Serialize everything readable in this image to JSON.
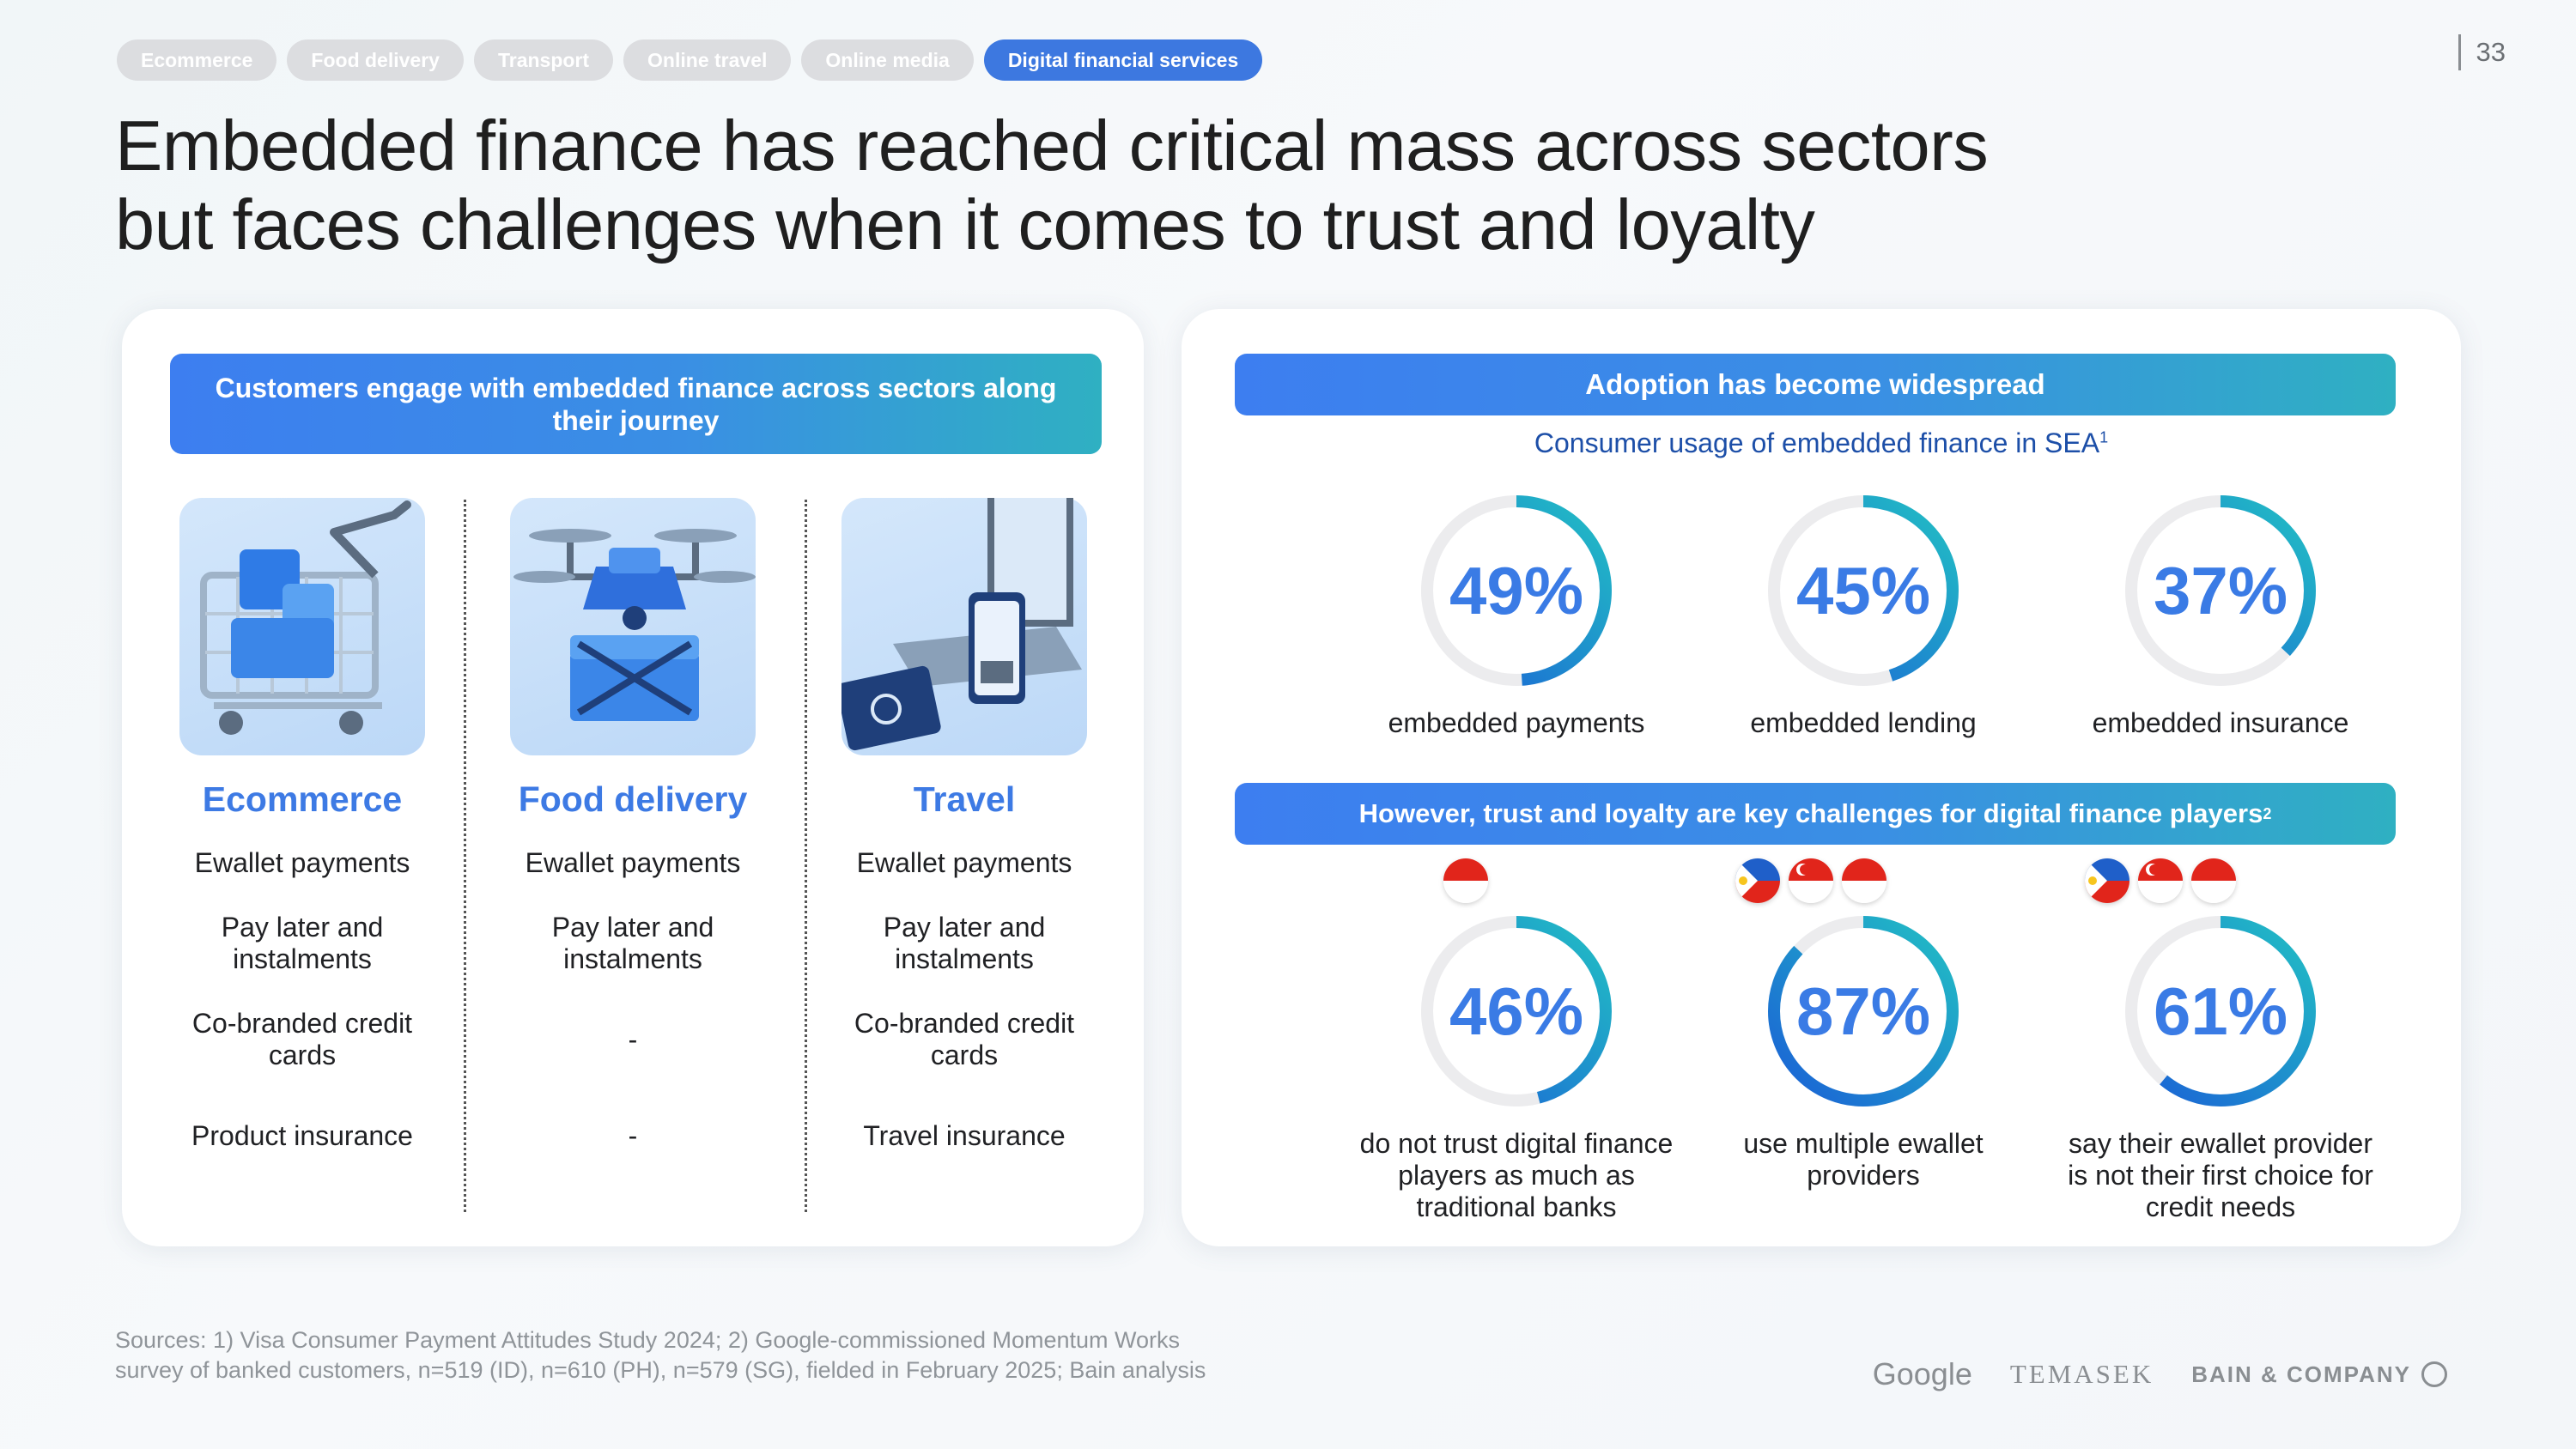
{
  "nav_tabs": [
    {
      "label": "Ecommerce",
      "active": false
    },
    {
      "label": "Food delivery",
      "active": false
    },
    {
      "label": "Transport",
      "active": false
    },
    {
      "label": "Online travel",
      "active": false
    },
    {
      "label": "Online media",
      "active": false
    },
    {
      "label": "Digital financial services",
      "active": true
    }
  ],
  "page_number": "33",
  "headline": {
    "line1": "Embedded finance has reached critical mass across sectors",
    "line2": "but faces challenges when it comes to trust and loyalty"
  },
  "left_panel": {
    "banner": "Customers engage with embedded finance across sectors along their journey",
    "sectors": [
      {
        "title": "Ecommerce",
        "illustration": "shopping-cart-illustration",
        "features": [
          "Ewallet payments",
          "Pay later and instalments",
          "Co-branded credit cards",
          "Product insurance"
        ]
      },
      {
        "title": "Food delivery",
        "illustration": "delivery-drone-illustration",
        "features": [
          "Ewallet payments",
          "Pay later and instalments",
          "-",
          "-"
        ]
      },
      {
        "title": "Travel",
        "illustration": "laptop-passport-illustration",
        "features": [
          "Ewallet payments",
          "Pay later and instalments",
          "Co-branded credit cards",
          "Travel insurance"
        ]
      }
    ]
  },
  "right_panel": {
    "adoption_banner": "Adoption has become widespread",
    "usage_subtitle": "Consumer usage of embedded finance in SEA",
    "usage_footnote": "1",
    "usage_stats": [
      {
        "value": "49%",
        "fraction": 0.49,
        "label": "embedded payments"
      },
      {
        "value": "45%",
        "fraction": 0.45,
        "label": "embedded lending"
      },
      {
        "value": "37%",
        "fraction": 0.37,
        "label": "embedded insurance"
      }
    ],
    "challenges_banner": "However, trust and loyalty are key challenges for digital finance players",
    "challenges_footnote": "2",
    "challenge_stats": [
      {
        "value": "46%",
        "fraction": 0.46,
        "label": "do not trust digital finance players as much as traditional banks",
        "flags": [
          "indonesia"
        ]
      },
      {
        "value": "87%",
        "fraction": 0.87,
        "label": "use multiple ewallet providers",
        "flags": [
          "philippines",
          "singapore",
          "indonesia"
        ]
      },
      {
        "value": "61%",
        "fraction": 0.61,
        "label": "say their ewallet provider is not their first choice for credit needs",
        "flags": [
          "philippines",
          "singapore",
          "indonesia"
        ]
      }
    ]
  },
  "sources": {
    "line1": "Sources: 1) Visa Consumer Payment Attitudes Study 2024; 2) Google-commissioned Momentum Works",
    "line2": "survey of banked customers, n=519 (ID), n=610 (PH), n=579 (SG), fielded in February 2025; Bain analysis"
  },
  "logos": {
    "google": "Google",
    "temasek": "TEMASEK",
    "bain": "BAIN & COMPANY"
  },
  "colors": {
    "accent": "#3a7be5",
    "ring_start": "#1a5fd6",
    "ring_end": "#22c0c4",
    "ring_track": "#ececee"
  }
}
